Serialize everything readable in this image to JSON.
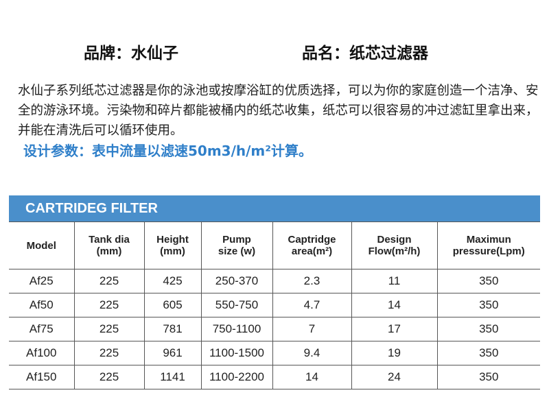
{
  "brand": {
    "label": "品牌：水仙子",
    "product": "品名：纸芯过滤器"
  },
  "description": "水仙子系列纸芯过滤器是你的泳池或按摩浴缸的优质选择，可以为你的家庭创造一个洁净、安全的游泳环境。污染物和碎片都能被桶内的纸芯收集，纸芯可以很容易的冲过滤缸里拿出来，并能在清洗后可以循环使用。",
  "design_param": "设计参数：表中流量以滤速50m3/h/m²计算。",
  "table": {
    "title": "CARTRIDEG FILTER",
    "accent": "#4a8fcb",
    "headers": [
      [
        "Model"
      ],
      [
        "Tank dia",
        "(mm)"
      ],
      [
        "Height",
        "(mm)"
      ],
      [
        "Pump",
        "size (w)"
      ],
      [
        "Captridge",
        "area(m²)"
      ],
      [
        "Design",
        "Flow(m²/h)"
      ],
      [
        "Maximun",
        "pressure(Lpm)"
      ]
    ],
    "rows": [
      [
        "Af25",
        "225",
        "425",
        "250-370",
        "2.3",
        "11",
        "350"
      ],
      [
        "Af50",
        "225",
        "605",
        "550-750",
        "4.7",
        "14",
        "350"
      ],
      [
        "Af75",
        "225",
        "781",
        "750-1100",
        "7",
        "17",
        "350"
      ],
      [
        "Af100",
        "225",
        "961",
        "1100-1500",
        "9.4",
        "19",
        "350"
      ],
      [
        "Af150",
        "225",
        "1141",
        "1100-2200",
        "14",
        "24",
        "350"
      ]
    ]
  }
}
